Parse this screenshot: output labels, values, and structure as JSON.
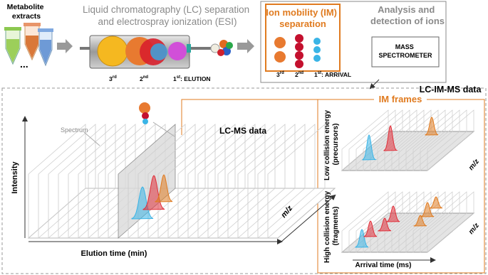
{
  "inputs": {
    "title": [
      "Metabolite",
      "extracts"
    ]
  },
  "lc": {
    "title": [
      "Liquid chromatography (LC) separation",
      "and electrospray ionization (ESI)"
    ],
    "order": [
      {
        "n": "3",
        "suffix": "rd"
      },
      {
        "n": "2",
        "suffix": "nd"
      },
      {
        "n": "1",
        "suffix": "st"
      }
    ],
    "label": ": ELUTION"
  },
  "im": {
    "title": [
      "Ion mobility (IM)",
      "separation"
    ],
    "order": [
      {
        "n": "3",
        "suffix": "rd"
      },
      {
        "n": "2",
        "suffix": "nd"
      },
      {
        "n": "1",
        "suffix": "st"
      }
    ],
    "label": ": ARRIVAL"
  },
  "ms": {
    "title": [
      "Analysis and",
      "detection of ions"
    ],
    "box": [
      "MASS",
      "SPECTROMETER"
    ]
  },
  "data": {
    "title": "LC-IM-MS data",
    "lcms": "LC-MS data",
    "spectrum": "Spectrum",
    "y_axis": "Intensity",
    "x_axis": "Elution time (min)",
    "depth_axis": "m/z"
  },
  "frames": {
    "title": "IM frames",
    "low": [
      "Low collision energy",
      "(precursors)"
    ],
    "high": [
      "High collision energy",
      "(fragments)"
    ],
    "depth_axis": "m/z",
    "x_axis": "Arrival time (ms)"
  }
}
